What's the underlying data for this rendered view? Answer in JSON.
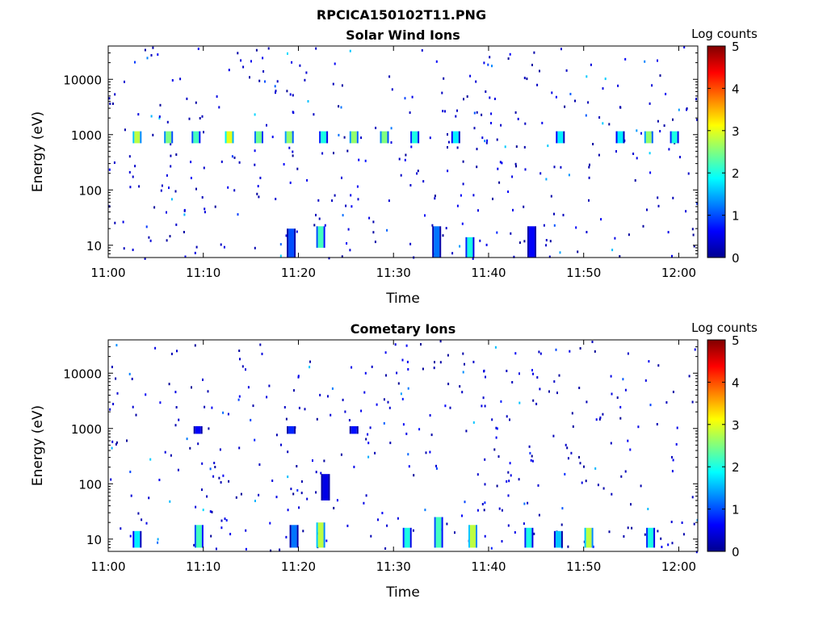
{
  "figure": {
    "title": "RPCICA150102T11.PNG"
  },
  "chart_data": [
    {
      "type": "heatmap",
      "title": "Solar Wind Ions",
      "xlabel": "Time",
      "ylabel": "Energy (eV)",
      "x_ticks": [
        "11:00",
        "11:10",
        "11:20",
        "11:30",
        "11:40",
        "11:50",
        "12:00"
      ],
      "x_range_minutes": [
        0,
        62
      ],
      "y_scale": "log",
      "y_ticks": [
        10,
        100,
        1000,
        10000
      ],
      "y_tick_labels": [
        "10",
        "100",
        "1000",
        "10000"
      ],
      "ylim": [
        6,
        40000
      ],
      "colorbar": {
        "label": "Log counts",
        "ticks": [
          "0",
          "1",
          "2",
          "3",
          "4",
          "5"
        ],
        "range": [
          0,
          5
        ],
        "colormap": "jet"
      },
      "bands": [
        {
          "t_min": 3.0,
          "e_low": 700,
          "e_high": 1150,
          "log_counts": 2.8
        },
        {
          "t_min": 6.3,
          "e_low": 700,
          "e_high": 1150,
          "log_counts": 2.5
        },
        {
          "t_min": 9.2,
          "e_low": 700,
          "e_high": 1150,
          "log_counts": 2.2
        },
        {
          "t_min": 12.7,
          "e_low": 700,
          "e_high": 1150,
          "log_counts": 3.0
        },
        {
          "t_min": 15.8,
          "e_low": 700,
          "e_high": 1150,
          "log_counts": 2.4
        },
        {
          "t_min": 19.0,
          "e_low": 700,
          "e_high": 1150,
          "log_counts": 2.6
        },
        {
          "t_min": 22.6,
          "e_low": 700,
          "e_high": 1150,
          "log_counts": 2.0
        },
        {
          "t_min": 25.8,
          "e_low": 700,
          "e_high": 1150,
          "log_counts": 2.6
        },
        {
          "t_min": 29.0,
          "e_low": 700,
          "e_high": 1150,
          "log_counts": 2.5
        },
        {
          "t_min": 32.2,
          "e_low": 700,
          "e_high": 1150,
          "log_counts": 2.0
        },
        {
          "t_min": 36.5,
          "e_low": 700,
          "e_high": 1150,
          "log_counts": 1.8
        },
        {
          "t_min": 47.5,
          "e_low": 700,
          "e_high": 1150,
          "log_counts": 1.8
        },
        {
          "t_min": 53.8,
          "e_low": 700,
          "e_high": 1150,
          "log_counts": 1.8
        },
        {
          "t_min": 56.8,
          "e_low": 700,
          "e_high": 1150,
          "log_counts": 2.6
        },
        {
          "t_min": 59.5,
          "e_low": 700,
          "e_high": 1150,
          "log_counts": 2.0
        },
        {
          "t_min": 22.3,
          "e_low": 9,
          "e_high": 22,
          "log_counts": 2.2
        },
        {
          "t_min": 38.0,
          "e_low": 6,
          "e_high": 14,
          "log_counts": 2.0
        },
        {
          "t_min": 34.5,
          "e_low": 6,
          "e_high": 22,
          "log_counts": 1.2
        },
        {
          "t_min": 19.2,
          "e_low": 6,
          "e_high": 20,
          "log_counts": 1.0
        },
        {
          "t_min": 44.5,
          "e_low": 6,
          "e_high": 22,
          "log_counts": 0.6
        }
      ]
    },
    {
      "type": "heatmap",
      "title": "Cometary Ions",
      "xlabel": "Time",
      "ylabel": "Energy (eV)",
      "x_ticks": [
        "11:00",
        "11:10",
        "11:20",
        "11:30",
        "11:40",
        "11:50",
        "12:00"
      ],
      "x_range_minutes": [
        0,
        62
      ],
      "y_scale": "log",
      "y_ticks": [
        10,
        100,
        1000,
        10000
      ],
      "y_tick_labels": [
        "10",
        "100",
        "1000",
        "10000"
      ],
      "ylim": [
        6,
        40000
      ],
      "colorbar": {
        "label": "Log counts",
        "ticks": [
          "0",
          "1",
          "2",
          "3",
          "4",
          "5"
        ],
        "range": [
          0,
          5
        ],
        "colormap": "jet"
      },
      "bands": [
        {
          "t_min": 22.3,
          "e_low": 7,
          "e_high": 20,
          "log_counts": 2.8
        },
        {
          "t_min": 38.3,
          "e_low": 7,
          "e_high": 18,
          "log_counts": 2.8
        },
        {
          "t_min": 50.5,
          "e_low": 7,
          "e_high": 16,
          "log_counts": 2.8
        },
        {
          "t_min": 34.7,
          "e_low": 7,
          "e_high": 25,
          "log_counts": 2.2
        },
        {
          "t_min": 44.2,
          "e_low": 7,
          "e_high": 16,
          "log_counts": 2.0
        },
        {
          "t_min": 31.4,
          "e_low": 7,
          "e_high": 16,
          "log_counts": 2.0
        },
        {
          "t_min": 57.0,
          "e_low": 7,
          "e_high": 16,
          "log_counts": 2.0
        },
        {
          "t_min": 9.5,
          "e_low": 7,
          "e_high": 18,
          "log_counts": 2.2
        },
        {
          "t_min": 3.0,
          "e_low": 7,
          "e_high": 14,
          "log_counts": 1.8
        },
        {
          "t_min": 47.3,
          "e_low": 7,
          "e_high": 14,
          "log_counts": 1.6
        },
        {
          "t_min": 19.5,
          "e_low": 7,
          "e_high": 18,
          "log_counts": 1.2
        },
        {
          "t_min": 22.8,
          "e_low": 50,
          "e_high": 150,
          "log_counts": 0.5
        },
        {
          "t_min": 9.4,
          "e_low": 800,
          "e_high": 1100,
          "log_counts": 0.6
        },
        {
          "t_min": 19.2,
          "e_low": 800,
          "e_high": 1100,
          "log_counts": 0.8
        },
        {
          "t_min": 25.8,
          "e_low": 800,
          "e_high": 1100,
          "log_counts": 0.7
        }
      ]
    }
  ]
}
